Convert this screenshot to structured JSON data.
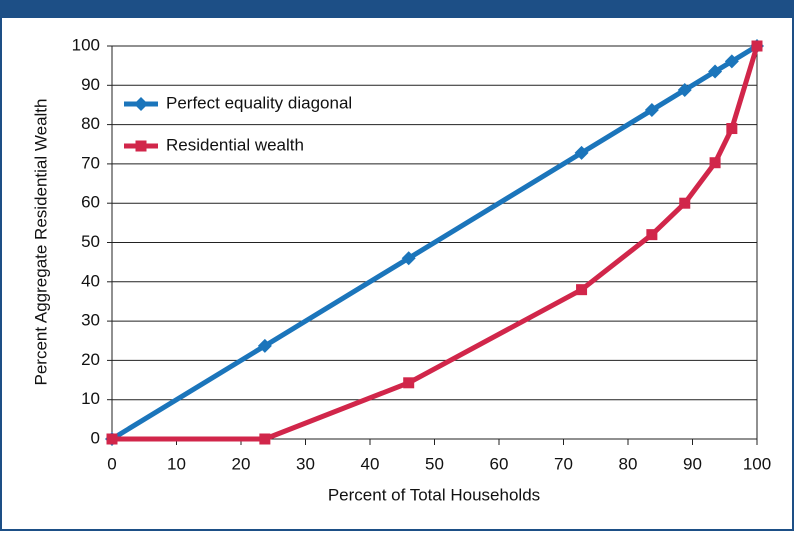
{
  "chart_data": {
    "type": "line",
    "x_label": "Percent of Total Households",
    "y_label": "Percent Aggregate Residential Wealth",
    "x": [
      0,
      23.7,
      46,
      72.8,
      83.7,
      88.8,
      93.5,
      96.1,
      100
    ],
    "series": [
      {
        "name": "Perfect equality diagonal",
        "color": "#1b75bb",
        "marker": "diamond",
        "values": [
          0,
          23.7,
          46,
          72.8,
          83.7,
          88.8,
          93.5,
          96.1,
          100
        ]
      },
      {
        "name": "Residential wealth",
        "color": "#d1264a",
        "marker": "square",
        "values": [
          0,
          0,
          14.3,
          38,
          52,
          60,
          70.3,
          79,
          100
        ]
      }
    ],
    "xlim": [
      0,
      100
    ],
    "xticks": [
      0,
      10,
      20,
      30,
      40,
      50,
      60,
      70,
      80,
      90,
      100
    ],
    "ylim": [
      0,
      100
    ],
    "yticks": [
      0,
      10,
      20,
      30,
      40,
      50,
      60,
      70,
      80,
      90,
      100
    ],
    "grid": true,
    "legend": "upper left"
  }
}
